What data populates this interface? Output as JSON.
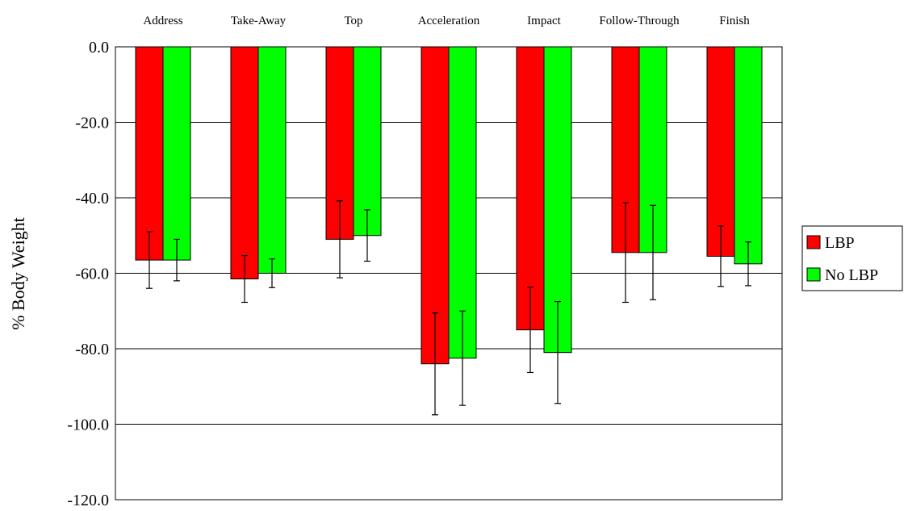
{
  "chart_data": {
    "type": "bar",
    "title": "",
    "xlabel": "",
    "ylabel": "% Body Weight",
    "categories": [
      "Address",
      "Take-Away",
      "Top",
      "Acceleration",
      "Impact",
      "Follow-Through",
      "Finish"
    ],
    "series": [
      {
        "name": "LBP",
        "color": "#ff0000",
        "values": [
          -56.5,
          -61.5,
          -51.0,
          -84.0,
          -75.0,
          -54.5,
          -55.5
        ],
        "error": [
          7.5,
          6.2,
          10.2,
          13.5,
          11.3,
          13.2,
          8.0
        ]
      },
      {
        "name": "No LBP",
        "color": "#00ff00",
        "values": [
          -56.5,
          -60.0,
          -50.0,
          -82.5,
          -81.0,
          -54.5,
          -57.5
        ],
        "error": [
          5.5,
          3.8,
          6.8,
          12.5,
          13.5,
          12.5,
          5.8
        ]
      }
    ],
    "ylim": [
      -120,
      0
    ],
    "yticks": [
      "0.0",
      "-20.0",
      "-40.0",
      "-60.0",
      "-80.0",
      "-100.0",
      "-120.0"
    ],
    "ytick_values": [
      0,
      -20,
      -40,
      -60,
      -80,
      -100,
      -120
    ],
    "grid": true,
    "legend_position": "right"
  }
}
